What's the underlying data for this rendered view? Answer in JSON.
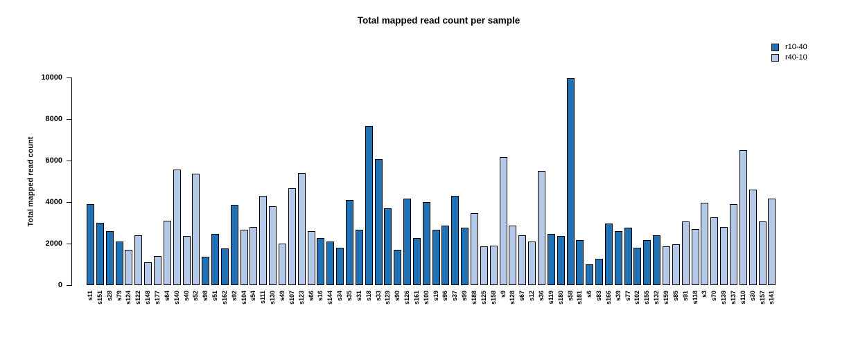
{
  "chart_data": {
    "type": "bar",
    "title": "Total mapped read count per sample",
    "xlabel": "",
    "ylabel": "Total mapped read count",
    "ylim": [
      0,
      10000
    ],
    "yticks": [
      0,
      2000,
      4000,
      6000,
      8000,
      10000
    ],
    "grid": false,
    "legend_position": "top-right",
    "legend": [
      {
        "label": "r10-40",
        "color": "#2171b5"
      },
      {
        "label": "r40-10",
        "color": "#b4c9e7"
      }
    ],
    "colors": {
      "r10-40": "#2171b5",
      "r40-10": "#b4c9e7"
    },
    "samples": [
      {
        "name": "s11",
        "group": "r10-40",
        "value": 3900
      },
      {
        "name": "s151",
        "group": "r10-40",
        "value": 3000
      },
      {
        "name": "s28",
        "group": "r10-40",
        "value": 2600
      },
      {
        "name": "s79",
        "group": "r10-40",
        "value": 2100
      },
      {
        "name": "s124",
        "group": "r40-10",
        "value": 1700
      },
      {
        "name": "s122",
        "group": "r40-10",
        "value": 2400
      },
      {
        "name": "s148",
        "group": "r40-10",
        "value": 1100
      },
      {
        "name": "s177",
        "group": "r40-10",
        "value": 1400
      },
      {
        "name": "s64",
        "group": "r40-10",
        "value": 3100
      },
      {
        "name": "s140",
        "group": "r40-10",
        "value": 5550
      },
      {
        "name": "s40",
        "group": "r40-10",
        "value": 2350
      },
      {
        "name": "s52",
        "group": "r40-10",
        "value": 5350
      },
      {
        "name": "s98",
        "group": "r10-40",
        "value": 1350
      },
      {
        "name": "s51",
        "group": "r10-40",
        "value": 2450
      },
      {
        "name": "s162",
        "group": "r10-40",
        "value": 1750
      },
      {
        "name": "s92",
        "group": "r10-40",
        "value": 3850
      },
      {
        "name": "s104",
        "group": "r40-10",
        "value": 2650
      },
      {
        "name": "s54",
        "group": "r40-10",
        "value": 2800
      },
      {
        "name": "s111",
        "group": "r40-10",
        "value": 4300
      },
      {
        "name": "s130",
        "group": "r40-10",
        "value": 3800
      },
      {
        "name": "s49",
        "group": "r40-10",
        "value": 2000
      },
      {
        "name": "s107",
        "group": "r40-10",
        "value": 4650
      },
      {
        "name": "s123",
        "group": "r40-10",
        "value": 5400
      },
      {
        "name": "s66",
        "group": "r40-10",
        "value": 2600
      },
      {
        "name": "s16",
        "group": "r10-40",
        "value": 2250
      },
      {
        "name": "s144",
        "group": "r10-40",
        "value": 2100
      },
      {
        "name": "s34",
        "group": "r10-40",
        "value": 1800
      },
      {
        "name": "s35",
        "group": "r10-40",
        "value": 4100
      },
      {
        "name": "s31",
        "group": "r10-40",
        "value": 2650
      },
      {
        "name": "s18",
        "group": "r10-40",
        "value": 7650
      },
      {
        "name": "s33",
        "group": "r10-40",
        "value": 6050
      },
      {
        "name": "s129",
        "group": "r10-40",
        "value": 3700
      },
      {
        "name": "s90",
        "group": "r10-40",
        "value": 1700
      },
      {
        "name": "s126",
        "group": "r10-40",
        "value": 4150
      },
      {
        "name": "s161",
        "group": "r10-40",
        "value": 2250
      },
      {
        "name": "s100",
        "group": "r10-40",
        "value": 4000
      },
      {
        "name": "s19",
        "group": "r10-40",
        "value": 2650
      },
      {
        "name": "s96",
        "group": "r10-40",
        "value": 2850
      },
      {
        "name": "s37",
        "group": "r10-40",
        "value": 4300
      },
      {
        "name": "s99",
        "group": "r10-40",
        "value": 2750
      },
      {
        "name": "s188",
        "group": "r40-10",
        "value": 3450
      },
      {
        "name": "s125",
        "group": "r40-10",
        "value": 1850
      },
      {
        "name": "s158",
        "group": "r40-10",
        "value": 1900
      },
      {
        "name": "s9",
        "group": "r40-10",
        "value": 6150
      },
      {
        "name": "s128",
        "group": "r40-10",
        "value": 2850
      },
      {
        "name": "s67",
        "group": "r40-10",
        "value": 2400
      },
      {
        "name": "s12",
        "group": "r40-10",
        "value": 2100
      },
      {
        "name": "s36",
        "group": "r40-10",
        "value": 5500
      },
      {
        "name": "s119",
        "group": "r10-40",
        "value": 2450
      },
      {
        "name": "s180",
        "group": "r10-40",
        "value": 2350
      },
      {
        "name": "s58",
        "group": "r10-40",
        "value": 9950
      },
      {
        "name": "s181",
        "group": "r10-40",
        "value": 2150
      },
      {
        "name": "s6",
        "group": "r10-40",
        "value": 1000
      },
      {
        "name": "s83",
        "group": "r10-40",
        "value": 1250
      },
      {
        "name": "s166",
        "group": "r10-40",
        "value": 2950
      },
      {
        "name": "s39",
        "group": "r10-40",
        "value": 2600
      },
      {
        "name": "s77",
        "group": "r10-40",
        "value": 2750
      },
      {
        "name": "s102",
        "group": "r10-40",
        "value": 1800
      },
      {
        "name": "s155",
        "group": "r10-40",
        "value": 2150
      },
      {
        "name": "s132",
        "group": "r10-40",
        "value": 2400
      },
      {
        "name": "s159",
        "group": "r40-10",
        "value": 1850
      },
      {
        "name": "s85",
        "group": "r40-10",
        "value": 1950
      },
      {
        "name": "s91",
        "group": "r40-10",
        "value": 3050
      },
      {
        "name": "s118",
        "group": "r40-10",
        "value": 2700
      },
      {
        "name": "s3",
        "group": "r40-10",
        "value": 3950
      },
      {
        "name": "s70",
        "group": "r40-10",
        "value": 3250
      },
      {
        "name": "s139",
        "group": "r40-10",
        "value": 2800
      },
      {
        "name": "s137",
        "group": "r40-10",
        "value": 3900
      },
      {
        "name": "s110",
        "group": "r40-10",
        "value": 6500
      },
      {
        "name": "s30",
        "group": "r40-10",
        "value": 4600
      },
      {
        "name": "s157",
        "group": "r40-10",
        "value": 3050
      },
      {
        "name": "s141",
        "group": "r40-10",
        "value": 4150
      }
    ]
  }
}
